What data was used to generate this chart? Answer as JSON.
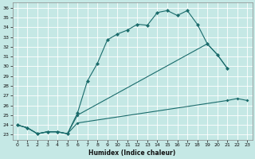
{
  "xlabel": "Humidex (Indice chaleur)",
  "bg_color": "#c5e8e5",
  "grid_color": "#ffffff",
  "line_color": "#1a6b6b",
  "xlim": [
    -0.5,
    23.5
  ],
  "ylim": [
    22.5,
    36.5
  ],
  "xticks": [
    0,
    1,
    2,
    3,
    4,
    5,
    6,
    7,
    8,
    9,
    10,
    11,
    12,
    13,
    14,
    15,
    16,
    17,
    18,
    19,
    20,
    21,
    22,
    23
  ],
  "yticks": [
    23,
    24,
    25,
    26,
    27,
    28,
    29,
    30,
    31,
    32,
    33,
    34,
    35,
    36
  ],
  "line_upper_x": [
    0,
    1,
    2,
    3,
    4,
    5,
    6,
    7,
    8,
    9,
    10,
    11,
    12,
    13,
    14,
    15,
    16,
    17,
    18,
    19,
    20,
    21
  ],
  "line_upper_y": [
    24.0,
    23.7,
    23.1,
    23.3,
    23.3,
    23.1,
    25.2,
    28.5,
    30.3,
    32.7,
    33.3,
    33.7,
    34.3,
    34.2,
    35.5,
    35.7,
    35.2,
    35.7,
    34.3,
    32.3,
    31.2,
    29.8
  ],
  "line_mid_x": [
    0,
    1,
    2,
    3,
    4,
    5,
    6,
    19,
    20,
    21
  ],
  "line_mid_y": [
    24.0,
    23.7,
    23.1,
    23.3,
    23.3,
    23.1,
    25.0,
    32.3,
    31.2,
    29.8
  ],
  "line_low_x": [
    0,
    1,
    2,
    3,
    4,
    5,
    6,
    21,
    22,
    23
  ],
  "line_low_y": [
    24.0,
    23.7,
    23.1,
    23.3,
    23.3,
    23.1,
    24.2,
    26.5,
    26.7,
    26.5
  ],
  "figsize": [
    3.2,
    2.0
  ],
  "dpi": 100
}
